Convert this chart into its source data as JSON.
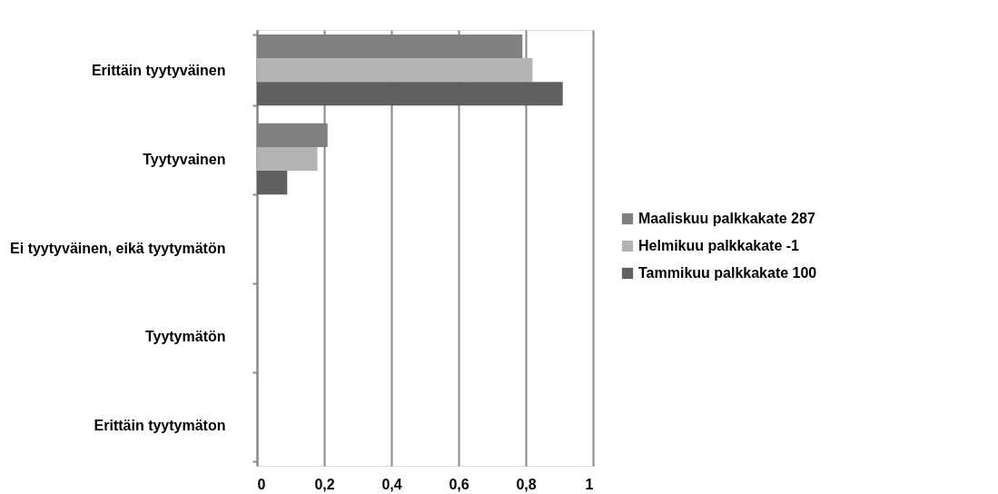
{
  "chart_data": {
    "type": "bar",
    "orientation": "horizontal",
    "categories": [
      "Erittäin tyytyväinen",
      "Tyytyvainen",
      "Ei tyytyväinen, eikä tyytymätön",
      "Tyytymätön",
      "Erittäin tyytymäton"
    ],
    "series": [
      {
        "name": "Maaliskuu palkkakate 287",
        "color": "#808080",
        "values": [
          0.79,
          0.21,
          0,
          0,
          0
        ]
      },
      {
        "name": "Helmikuu palkkakate    -1",
        "color": "#b3b3b3",
        "values": [
          0.82,
          0.18,
          0,
          0,
          0
        ]
      },
      {
        "name": "Tammikuu palkkakate 100",
        "color": "#606060",
        "values": [
          0.91,
          0.09,
          0,
          0,
          0
        ]
      }
    ],
    "xlim": [
      0,
      1
    ],
    "xticks": [
      0,
      {
        "value": 0.2,
        "label": "0,2"
      },
      {
        "value": 0.4,
        "label": "0,4"
      },
      {
        "value": 0.6,
        "label": "0,6"
      },
      {
        "value": 0.8,
        "label": "0,8"
      },
      1
    ],
    "grid": "x",
    "legend": "right"
  }
}
